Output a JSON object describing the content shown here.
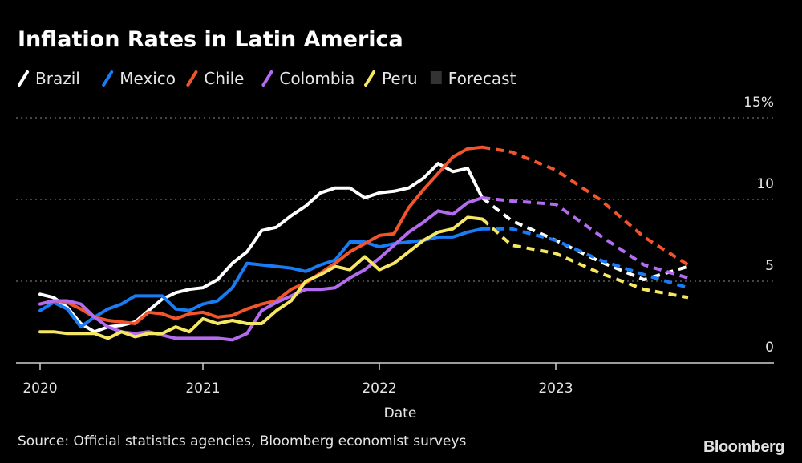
{
  "chart_data": {
    "type": "line",
    "title": "Inflation Rates in Latin America",
    "xlabel": "Date",
    "ylabel": "",
    "y_unit": "%",
    "ylim": [
      0,
      15
    ],
    "yticks": [
      {
        "value": 15,
        "label": "15%"
      },
      {
        "value": 10,
        "label": "10"
      },
      {
        "value": 5,
        "label": "5"
      },
      {
        "value": 0,
        "label": "0"
      }
    ],
    "xticks": [
      "2020",
      "2021",
      "2022",
      "2023"
    ],
    "grid": "horizontal dotted",
    "legend_placement": "top-left",
    "history_start": "2020-01",
    "forecast_label": "Forecast",
    "forecast_range": [
      "2022-08",
      "2024-01"
    ],
    "forecast_color": "#333333",
    "series": [
      {
        "name": "Brazil",
        "color": "#ffffff",
        "history": [
          4.2,
          4.0,
          3.4,
          2.4,
          1.9,
          2.2,
          2.3,
          2.5,
          3.2,
          3.9,
          4.3,
          4.5,
          4.6,
          5.1,
          6.1,
          6.8,
          8.1,
          8.3,
          9.0,
          9.6,
          10.4,
          10.7,
          10.7,
          10.1,
          10.4,
          10.5,
          10.7,
          11.3,
          12.2,
          11.7,
          11.9,
          10.1
        ],
        "forecast": [
          [
            "2022-08",
            10.1
          ],
          [
            "2022-10",
            8.7
          ],
          [
            "2023-01",
            7.5
          ],
          [
            "2023-04",
            6.2
          ],
          [
            "2023-07",
            5.1
          ],
          [
            "2023-10",
            5.9
          ],
          [
            "2024-01",
            5.5
          ]
        ]
      },
      {
        "name": "Mexico",
        "color": "#1a7cf5",
        "history": [
          3.2,
          3.7,
          3.3,
          2.2,
          2.8,
          3.3,
          3.6,
          4.1,
          4.1,
          4.1,
          3.3,
          3.2,
          3.6,
          3.8,
          4.6,
          6.1,
          6.0,
          5.9,
          5.8,
          5.6,
          6.0,
          6.3,
          7.4,
          7.4,
          7.1,
          7.3,
          7.4,
          7.5,
          7.7,
          7.7,
          8.0,
          8.2
        ],
        "forecast": [
          [
            "2022-08",
            8.2
          ],
          [
            "2022-10",
            8.2
          ],
          [
            "2023-01",
            7.5
          ],
          [
            "2023-04",
            6.3
          ],
          [
            "2023-07",
            5.4
          ],
          [
            "2023-10",
            4.6
          ],
          [
            "2024-01",
            4.5
          ]
        ]
      },
      {
        "name": "Chile",
        "color": "#f2552c",
        "history": [
          3.6,
          3.8,
          3.7,
          3.3,
          2.8,
          2.6,
          2.5,
          2.4,
          3.1,
          3.0,
          2.7,
          3.0,
          3.1,
          2.8,
          2.9,
          3.3,
          3.6,
          3.8,
          4.5,
          4.9,
          5.5,
          6.1,
          6.8,
          7.3,
          7.8,
          7.9,
          9.5,
          10.6,
          11.6,
          12.6,
          13.1,
          13.2
        ],
        "forecast": [
          [
            "2022-08",
            13.2
          ],
          [
            "2022-10",
            12.9
          ],
          [
            "2023-01",
            11.8
          ],
          [
            "2023-04",
            10.0
          ],
          [
            "2023-07",
            7.7
          ],
          [
            "2023-10",
            6.0
          ],
          [
            "2024-01",
            4.7
          ]
        ]
      },
      {
        "name": "Colombia",
        "color": "#b36cf0",
        "history": [
          3.6,
          3.8,
          3.8,
          3.6,
          2.8,
          2.2,
          1.9,
          1.8,
          1.9,
          1.7,
          1.5,
          1.5,
          1.5,
          1.5,
          1.4,
          1.8,
          3.2,
          3.7,
          4.1,
          4.5,
          4.5,
          4.6,
          5.2,
          5.7,
          6.4,
          7.2,
          8.0,
          8.6,
          9.3,
          9.1,
          9.8,
          10.1
        ],
        "forecast": [
          [
            "2022-08",
            10.1
          ],
          [
            "2022-10",
            9.9
          ],
          [
            "2023-01",
            9.7
          ],
          [
            "2023-04",
            7.8
          ],
          [
            "2023-07",
            6.0
          ],
          [
            "2023-10",
            5.2
          ],
          [
            "2024-01",
            5.1
          ]
        ]
      },
      {
        "name": "Peru",
        "color": "#f5e663",
        "history": [
          1.9,
          1.9,
          1.8,
          1.8,
          1.8,
          1.5,
          1.9,
          1.6,
          1.8,
          1.8,
          2.2,
          1.9,
          2.7,
          2.4,
          2.6,
          2.4,
          2.4,
          3.2,
          3.8,
          5.0,
          5.4,
          5.9,
          5.7,
          6.5,
          5.7,
          6.1,
          6.8,
          7.5,
          8.0,
          8.2,
          8.9,
          8.8
        ],
        "forecast": [
          [
            "2022-08",
            8.8
          ],
          [
            "2022-10",
            7.2
          ],
          [
            "2023-01",
            6.7
          ],
          [
            "2023-04",
            5.5
          ],
          [
            "2023-07",
            4.5
          ],
          [
            "2023-10",
            4.0
          ],
          [
            "2024-01",
            3.3
          ]
        ]
      }
    ],
    "source": "Source: Official statistics agencies, Bloomberg economist surveys",
    "logo": "Bloomberg"
  }
}
